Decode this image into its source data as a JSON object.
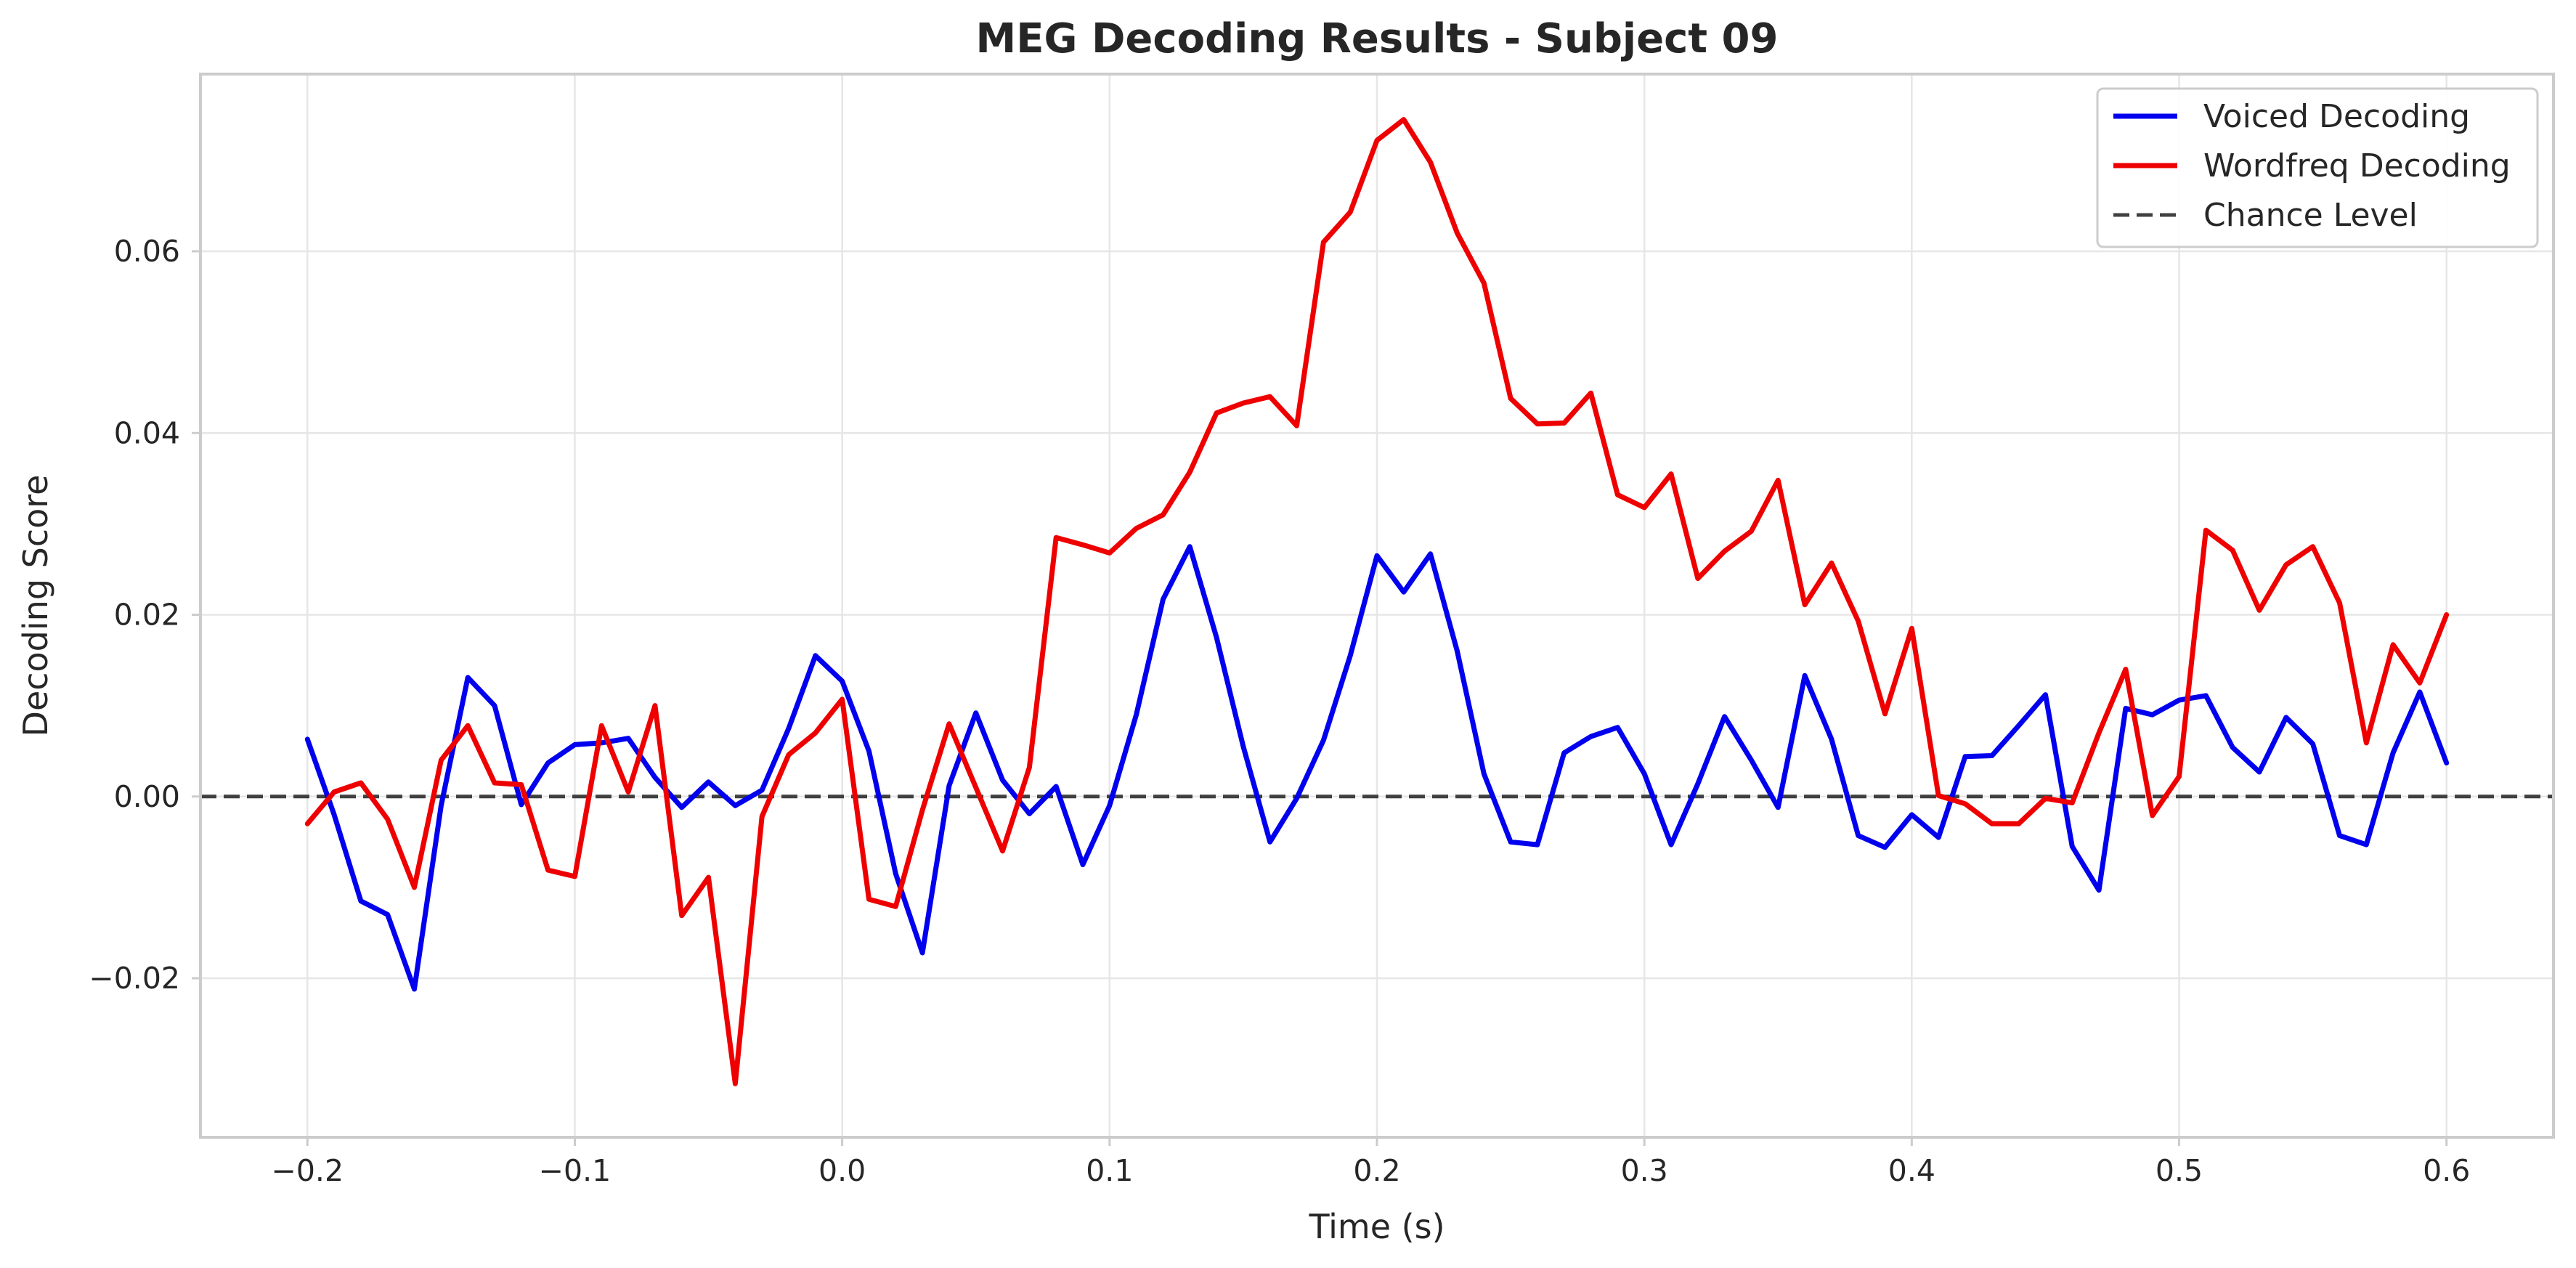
{
  "chart_data": {
    "type": "line",
    "title": "MEG Decoding Results - Subject 09",
    "xlabel": "Time (s)",
    "ylabel": "Decoding Score",
    "xlim": [
      -0.24,
      0.64
    ],
    "ylim": [
      -0.0375,
      0.0795
    ],
    "grid": true,
    "legend_position": "top-right",
    "x_ticks": [
      -0.2,
      -0.1,
      0.0,
      0.1,
      0.2,
      0.3,
      0.4,
      0.5,
      0.6
    ],
    "x_tick_labels": [
      "−0.2",
      "−0.1",
      "0.0",
      "0.1",
      "0.2",
      "0.3",
      "0.4",
      "0.5",
      "0.6"
    ],
    "y_ticks": [
      -0.02,
      0.0,
      0.02,
      0.04,
      0.06
    ],
    "y_tick_labels": [
      "−0.02",
      "0.00",
      "0.02",
      "0.04",
      "0.06"
    ],
    "x": [
      -0.2,
      -0.19,
      -0.18,
      -0.17,
      -0.16,
      -0.15,
      -0.14,
      -0.13,
      -0.12,
      -0.11,
      -0.1,
      -0.09,
      -0.08,
      -0.07,
      -0.06,
      -0.05,
      -0.04,
      -0.03,
      -0.02,
      -0.01,
      0.0,
      0.01,
      0.02,
      0.03,
      0.04,
      0.05,
      0.06,
      0.07,
      0.08,
      0.09,
      0.1,
      0.11,
      0.12,
      0.13,
      0.14,
      0.15,
      0.16,
      0.17,
      0.18,
      0.19,
      0.2,
      0.21,
      0.22,
      0.23,
      0.24,
      0.25,
      0.26,
      0.27,
      0.28,
      0.29,
      0.3,
      0.31,
      0.32,
      0.33,
      0.34,
      0.35,
      0.36,
      0.37,
      0.38,
      0.39,
      0.4,
      0.41,
      0.42,
      0.43,
      0.44,
      0.45,
      0.46,
      0.47,
      0.48,
      0.49,
      0.5,
      0.51,
      0.52,
      0.53,
      0.54,
      0.55,
      0.56,
      0.57,
      0.58,
      0.59,
      0.6
    ],
    "series": [
      {
        "name": "Voiced Decoding",
        "color": "#0000ee",
        "values": [
          0.0063,
          -0.002,
          -0.0115,
          -0.013,
          -0.0212,
          -0.001,
          0.0131,
          0.01,
          -0.0009,
          0.0037,
          0.0057,
          0.0059,
          0.0064,
          0.0021,
          -0.0012,
          0.0016,
          -0.001,
          0.0007,
          0.0075,
          0.0155,
          0.0127,
          0.005,
          -0.0085,
          -0.0172,
          0.0012,
          0.0092,
          0.0018,
          -0.0019,
          0.0011,
          -0.0075,
          -0.001,
          0.009,
          0.0217,
          0.0275,
          0.0175,
          0.0055,
          -0.005,
          -0.0002,
          0.0062,
          0.0155,
          0.0265,
          0.0225,
          0.0267,
          0.016,
          0.0025,
          -0.005,
          -0.0053,
          0.0048,
          0.0066,
          0.0076,
          0.0025,
          -0.0053,
          0.0014,
          0.0088,
          0.004,
          -0.0012,
          0.0133,
          0.0063,
          -0.0043,
          -0.0056,
          -0.002,
          -0.0045,
          0.0044,
          0.0045,
          0.0078,
          0.0112,
          -0.0055,
          -0.0103,
          0.0097,
          0.009,
          0.0106,
          0.0111,
          0.0054,
          0.0027,
          0.0087,
          0.0058,
          -0.0043,
          -0.0053,
          0.0048,
          0.0115,
          0.0037
        ]
      },
      {
        "name": "Wordfreq Decoding",
        "color": "#ee0000",
        "values": [
          -0.003,
          0.0005,
          0.0015,
          -0.0025,
          -0.01,
          0.004,
          0.0078,
          0.0015,
          0.0013,
          -0.0081,
          -0.0088,
          0.0078,
          0.0005,
          0.01,
          -0.0131,
          -0.0089,
          -0.0316,
          -0.0022,
          0.0046,
          0.007,
          0.0107,
          -0.0113,
          -0.0121,
          -0.0015,
          0.008,
          0.001,
          -0.006,
          0.0032,
          0.0285,
          0.0277,
          0.0268,
          0.0295,
          0.031,
          0.0357,
          0.0422,
          0.0433,
          0.044,
          0.0408,
          0.061,
          0.0643,
          0.0722,
          0.0745,
          0.0698,
          0.062,
          0.0565,
          0.0438,
          0.041,
          0.0411,
          0.0444,
          0.0332,
          0.0318,
          0.0355,
          0.024,
          0.027,
          0.0292,
          0.0348,
          0.0211,
          0.0257,
          0.0193,
          0.0091,
          0.0185,
          0.0001,
          -0.0008,
          -0.003,
          -0.003,
          -0.0002,
          -0.0007,
          0.007,
          0.014,
          -0.0021,
          0.0022,
          0.0293,
          0.0271,
          0.0205,
          0.0255,
          0.0275,
          0.0213,
          0.0059,
          0.0167,
          0.0125,
          0.02
        ]
      }
    ],
    "reference_line": {
      "name": "Chance Level",
      "y": 0.0,
      "color": "#404040",
      "style": "dashed"
    }
  }
}
